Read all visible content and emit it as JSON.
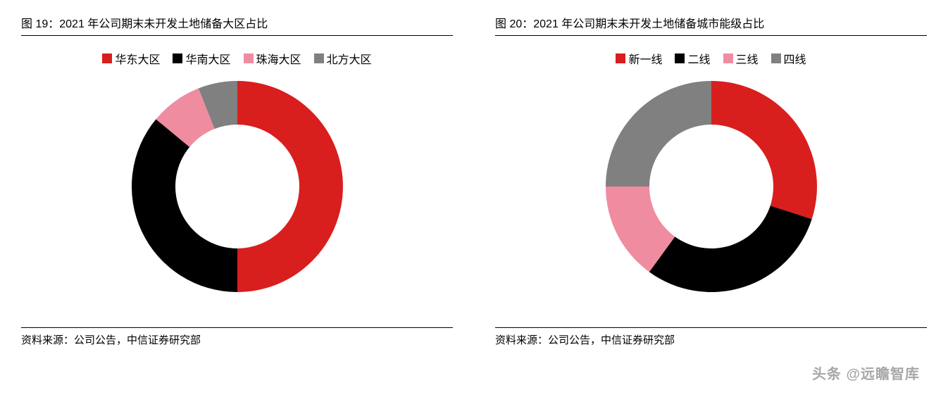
{
  "left_chart": {
    "title": "图 19：2021 年公司期末未开发土地储备大区占比",
    "type": "donut",
    "legend": [
      {
        "label": "华东大区",
        "color": "#d91e1e"
      },
      {
        "label": "华南大区",
        "color": "#000000"
      },
      {
        "label": "珠海大区",
        "color": "#f08ca0"
      },
      {
        "label": "北方大区",
        "color": "#808080"
      }
    ],
    "values": [
      50,
      36,
      8,
      6
    ],
    "inner_radius": 88,
    "outer_radius": 150,
    "start_angle": -90,
    "source": "资料来源：公司公告，中信证券研究部"
  },
  "right_chart": {
    "title": "图 20：2021 年公司期末未开发土地储备城市能级占比",
    "type": "donut",
    "legend": [
      {
        "label": "新一线",
        "color": "#d91e1e"
      },
      {
        "label": "二线",
        "color": "#000000"
      },
      {
        "label": "三线",
        "color": "#f08ca0"
      },
      {
        "label": "四线",
        "color": "#808080"
      }
    ],
    "values": [
      30,
      30,
      15,
      25
    ],
    "inner_radius": 88,
    "outer_radius": 150,
    "start_angle": -90,
    "source": "资料来源：公司公告，中信证券研究部"
  },
  "watermark": "头条 @远瞻智库",
  "background_color": "#ffffff"
}
